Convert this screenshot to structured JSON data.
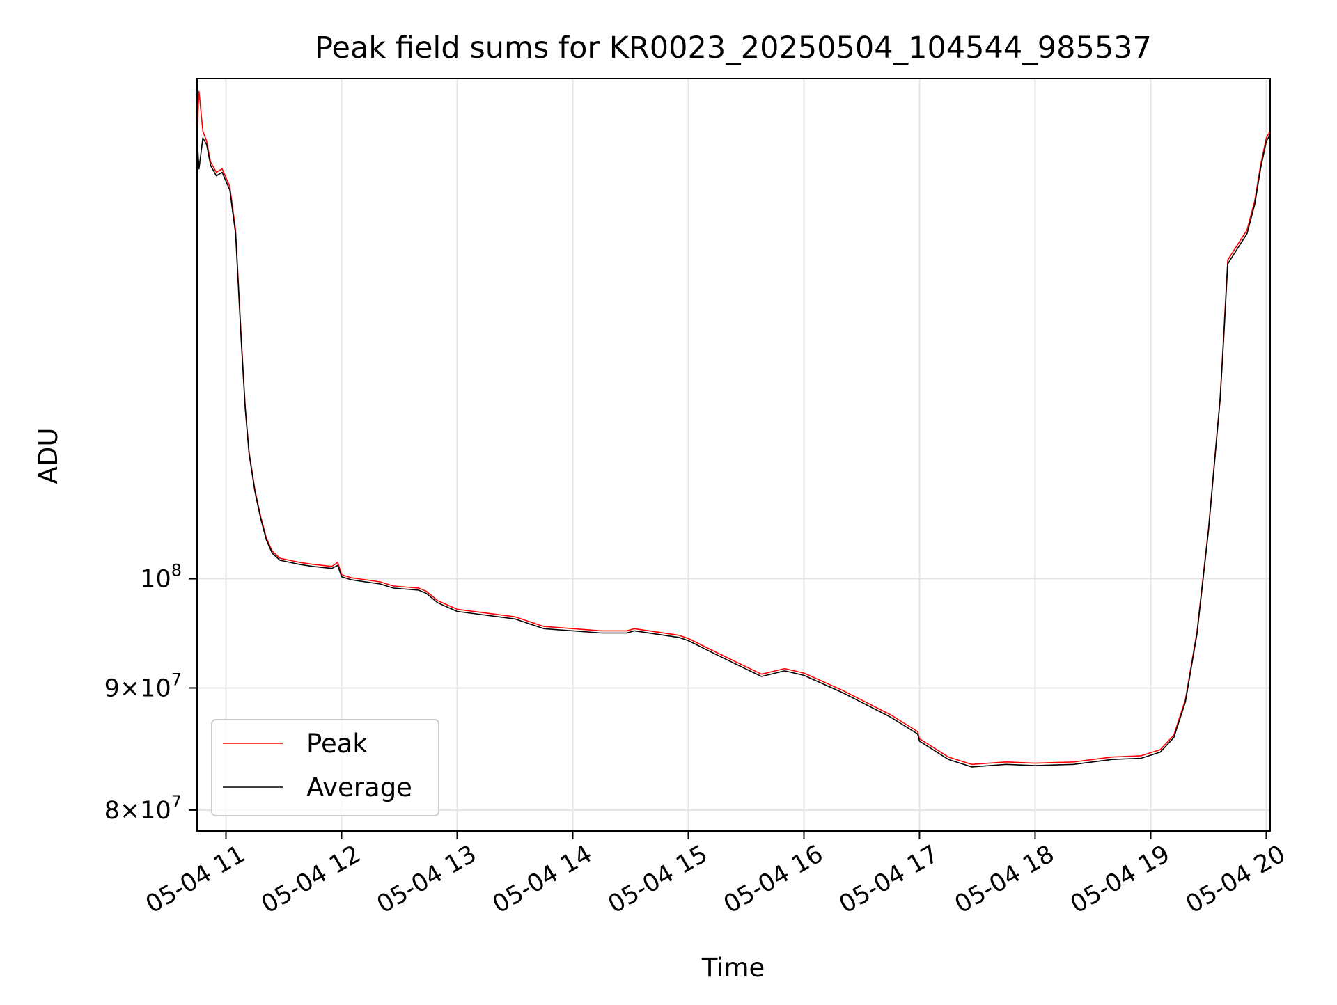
{
  "chart_data": {
    "type": "line",
    "title": "Peak field sums for KR0023_20250504_104544_985537",
    "xlabel": "Time",
    "ylabel": "ADU",
    "x_scale": "time",
    "y_scale": "log",
    "xlim": [
      "2025-05-04 10:45",
      "2025-05-04 20:02"
    ],
    "ylim": [
      78400000,
      162000000
    ],
    "x_ticks": [
      "2025-05-04 11:00",
      "2025-05-04 12:00",
      "2025-05-04 13:00",
      "2025-05-04 14:00",
      "2025-05-04 15:00",
      "2025-05-04 16:00",
      "2025-05-04 17:00",
      "2025-05-04 18:00",
      "2025-05-04 19:00",
      "2025-05-04 20:00"
    ],
    "x_tick_labels": [
      "05-04 11",
      "05-04 12",
      "05-04 13",
      "05-04 14",
      "05-04 15",
      "05-04 16",
      "05-04 17",
      "05-04 18",
      "05-04 19",
      "05-04 20"
    ],
    "y_ticks": [
      {
        "value": 100000000,
        "base": "10",
        "exp": "8",
        "mant": ""
      },
      {
        "value": 90000000,
        "base": "10",
        "exp": "7",
        "mant": "9×"
      },
      {
        "value": 80000000,
        "base": "10",
        "exp": "7",
        "mant": "8×"
      }
    ],
    "grid": true,
    "legend": {
      "position": "lower left"
    },
    "series": [
      {
        "name": "Peak",
        "color": "#ff0000",
        "x": [
          "2025-05-04 10:45",
          "2025-05-04 10:46",
          "2025-05-04 10:48",
          "2025-05-04 10:50",
          "2025-05-04 10:52",
          "2025-05-04 10:55",
          "2025-05-04 10:58",
          "2025-05-04 11:02",
          "2025-05-04 11:05",
          "2025-05-04 11:08",
          "2025-05-04 11:10",
          "2025-05-04 11:12",
          "2025-05-04 11:15",
          "2025-05-04 11:18",
          "2025-05-04 11:21",
          "2025-05-04 11:24",
          "2025-05-04 11:28",
          "2025-05-04 11:33",
          "2025-05-04 11:38",
          "2025-05-04 11:45",
          "2025-05-04 11:55",
          "2025-05-04 11:58",
          "2025-05-04 12:00",
          "2025-05-04 12:05",
          "2025-05-04 12:20",
          "2025-05-04 12:27",
          "2025-05-04 12:40",
          "2025-05-04 12:44",
          "2025-05-04 12:50",
          "2025-05-04 13:00",
          "2025-05-04 13:30",
          "2025-05-04 13:45",
          "2025-05-04 14:15",
          "2025-05-04 14:28",
          "2025-05-04 14:32",
          "2025-05-04 14:55",
          "2025-05-04 15:00",
          "2025-05-04 15:15",
          "2025-05-04 15:38",
          "2025-05-04 15:50",
          "2025-05-04 16:00",
          "2025-05-04 16:20",
          "2025-05-04 16:45",
          "2025-05-04 16:59",
          "2025-05-04 17:00",
          "2025-05-04 17:15",
          "2025-05-04 17:27",
          "2025-05-04 17:45",
          "2025-05-04 18:00",
          "2025-05-04 18:20",
          "2025-05-04 18:40",
          "2025-05-04 18:55",
          "2025-05-04 19:05",
          "2025-05-04 19:12",
          "2025-05-04 19:18",
          "2025-05-04 19:24",
          "2025-05-04 19:30",
          "2025-05-04 19:36",
          "2025-05-04 19:38",
          "2025-05-04 19:40",
          "2025-05-04 19:45",
          "2025-05-04 19:50",
          "2025-05-04 19:54",
          "2025-05-04 19:57",
          "2025-05-04 20:00",
          "2025-05-04 20:02"
        ],
        "y": [
          154000000,
          160000000,
          154000000,
          152500000,
          149500000,
          148000000,
          148500000,
          146000000,
          140000000,
          126000000,
          118000000,
          113000000,
          109000000,
          106200000,
          104000000,
          102700000,
          102000000,
          101800000,
          101600000,
          101400000,
          101200000,
          101600000,
          100400000,
          100100000,
          99700000,
          99300000,
          99100000,
          98800000,
          97900000,
          97100000,
          96400000,
          95500000,
          95100000,
          95100000,
          95300000,
          94700000,
          94400000,
          93100000,
          91200000,
          91700000,
          91300000,
          89800000,
          87700000,
          86300000,
          85700000,
          84200000,
          83600000,
          83800000,
          83700000,
          83800000,
          84200000,
          84300000,
          84800000,
          86000000,
          89000000,
          95000000,
          105000000,
          119000000,
          127000000,
          136000000,
          138000000,
          140000000,
          144000000,
          149000000,
          153000000,
          154000000
        ]
      },
      {
        "name": "Average",
        "color": "#000000",
        "x": [
          "2025-05-04 10:45",
          "2025-05-04 10:46",
          "2025-05-04 10:48",
          "2025-05-04 10:50",
          "2025-05-04 10:52",
          "2025-05-04 10:55",
          "2025-05-04 10:58",
          "2025-05-04 11:02",
          "2025-05-04 11:05",
          "2025-05-04 11:08",
          "2025-05-04 11:10",
          "2025-05-04 11:12",
          "2025-05-04 11:15",
          "2025-05-04 11:18",
          "2025-05-04 11:21",
          "2025-05-04 11:24",
          "2025-05-04 11:28",
          "2025-05-04 11:33",
          "2025-05-04 11:38",
          "2025-05-04 11:45",
          "2025-05-04 11:55",
          "2025-05-04 11:58",
          "2025-05-04 12:00",
          "2025-05-04 12:05",
          "2025-05-04 12:20",
          "2025-05-04 12:27",
          "2025-05-04 12:40",
          "2025-05-04 12:44",
          "2025-05-04 12:50",
          "2025-05-04 13:00",
          "2025-05-04 13:30",
          "2025-05-04 13:45",
          "2025-05-04 14:15",
          "2025-05-04 14:28",
          "2025-05-04 14:32",
          "2025-05-04 14:55",
          "2025-05-04 15:00",
          "2025-05-04 15:15",
          "2025-05-04 15:38",
          "2025-05-04 15:50",
          "2025-05-04 16:00",
          "2025-05-04 16:20",
          "2025-05-04 16:45",
          "2025-05-04 16:59",
          "2025-05-04 17:00",
          "2025-05-04 17:15",
          "2025-05-04 17:27",
          "2025-05-04 17:45",
          "2025-05-04 18:00",
          "2025-05-04 18:20",
          "2025-05-04 18:40",
          "2025-05-04 18:55",
          "2025-05-04 19:05",
          "2025-05-04 19:12",
          "2025-05-04 19:18",
          "2025-05-04 19:24",
          "2025-05-04 19:30",
          "2025-05-04 19:36",
          "2025-05-04 19:38",
          "2025-05-04 19:40",
          "2025-05-04 19:45",
          "2025-05-04 19:50",
          "2025-05-04 19:54",
          "2025-05-04 19:57",
          "2025-05-04 20:00",
          "2025-05-04 20:02"
        ],
        "y": [
          153000000,
          148500000,
          153000000,
          152000000,
          149000000,
          147500000,
          148000000,
          145500000,
          139500000,
          125500000,
          117800000,
          112800000,
          108800000,
          106000000,
          103800000,
          102500000,
          101800000,
          101600000,
          101400000,
          101200000,
          101000000,
          101300000,
          100200000,
          99900000,
          99500000,
          99100000,
          98900000,
          98600000,
          97700000,
          96900000,
          96200000,
          95300000,
          94900000,
          94900000,
          95100000,
          94500000,
          94200000,
          92900000,
          91000000,
          91500000,
          91100000,
          89600000,
          87500000,
          86100000,
          85500000,
          84000000,
          83400000,
          83600000,
          83500000,
          83600000,
          84000000,
          84100000,
          84600000,
          85800000,
          88800000,
          94800000,
          104800000,
          118800000,
          126500000,
          135500000,
          137500000,
          139500000,
          143500000,
          148500000,
          152500000,
          153500000
        ]
      }
    ]
  }
}
